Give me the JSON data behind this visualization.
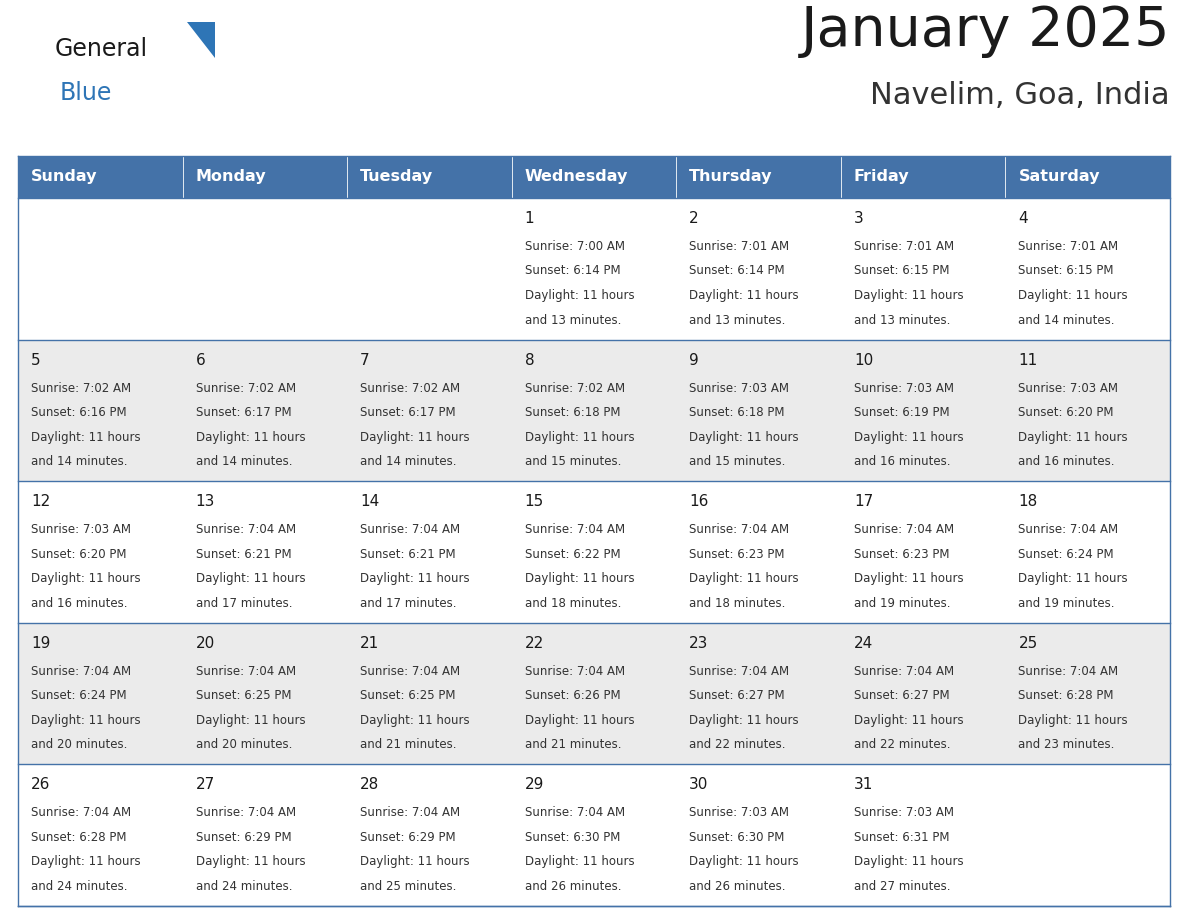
{
  "title": "January 2025",
  "subtitle": "Navelim, Goa, India",
  "header_bg": "#4472A8",
  "header_text_color": "#FFFFFF",
  "row_bg": [
    "#FFFFFF",
    "#EBEBEB",
    "#FFFFFF",
    "#EBEBEB",
    "#FFFFFF"
  ],
  "cell_border_color": "#4472A8",
  "row_separator_color": "#4472A8",
  "day_names": [
    "Sunday",
    "Monday",
    "Tuesday",
    "Wednesday",
    "Thursday",
    "Friday",
    "Saturday"
  ],
  "title_color": "#1a1a1a",
  "subtitle_color": "#333333",
  "day_number_color": "#1a1a1a",
  "info_color": "#333333",
  "logo_general_color": "#1a1a1a",
  "logo_blue_color": "#2E75B6",
  "logo_triangle_color": "#2E75B6",
  "calendar": [
    [
      {
        "day": null,
        "sunrise": null,
        "sunset": null,
        "daylight": null
      },
      {
        "day": null,
        "sunrise": null,
        "sunset": null,
        "daylight": null
      },
      {
        "day": null,
        "sunrise": null,
        "sunset": null,
        "daylight": null
      },
      {
        "day": 1,
        "sunrise": "7:00 AM",
        "sunset": "6:14 PM",
        "daylight": "11 hours and 13 minutes."
      },
      {
        "day": 2,
        "sunrise": "7:01 AM",
        "sunset": "6:14 PM",
        "daylight": "11 hours and 13 minutes."
      },
      {
        "day": 3,
        "sunrise": "7:01 AM",
        "sunset": "6:15 PM",
        "daylight": "11 hours and 13 minutes."
      },
      {
        "day": 4,
        "sunrise": "7:01 AM",
        "sunset": "6:15 PM",
        "daylight": "11 hours and 14 minutes."
      }
    ],
    [
      {
        "day": 5,
        "sunrise": "7:02 AM",
        "sunset": "6:16 PM",
        "daylight": "11 hours and 14 minutes."
      },
      {
        "day": 6,
        "sunrise": "7:02 AM",
        "sunset": "6:17 PM",
        "daylight": "11 hours and 14 minutes."
      },
      {
        "day": 7,
        "sunrise": "7:02 AM",
        "sunset": "6:17 PM",
        "daylight": "11 hours and 14 minutes."
      },
      {
        "day": 8,
        "sunrise": "7:02 AM",
        "sunset": "6:18 PM",
        "daylight": "11 hours and 15 minutes."
      },
      {
        "day": 9,
        "sunrise": "7:03 AM",
        "sunset": "6:18 PM",
        "daylight": "11 hours and 15 minutes."
      },
      {
        "day": 10,
        "sunrise": "7:03 AM",
        "sunset": "6:19 PM",
        "daylight": "11 hours and 16 minutes."
      },
      {
        "day": 11,
        "sunrise": "7:03 AM",
        "sunset": "6:20 PM",
        "daylight": "11 hours and 16 minutes."
      }
    ],
    [
      {
        "day": 12,
        "sunrise": "7:03 AM",
        "sunset": "6:20 PM",
        "daylight": "11 hours and 16 minutes."
      },
      {
        "day": 13,
        "sunrise": "7:04 AM",
        "sunset": "6:21 PM",
        "daylight": "11 hours and 17 minutes."
      },
      {
        "day": 14,
        "sunrise": "7:04 AM",
        "sunset": "6:21 PM",
        "daylight": "11 hours and 17 minutes."
      },
      {
        "day": 15,
        "sunrise": "7:04 AM",
        "sunset": "6:22 PM",
        "daylight": "11 hours and 18 minutes."
      },
      {
        "day": 16,
        "sunrise": "7:04 AM",
        "sunset": "6:23 PM",
        "daylight": "11 hours and 18 minutes."
      },
      {
        "day": 17,
        "sunrise": "7:04 AM",
        "sunset": "6:23 PM",
        "daylight": "11 hours and 19 minutes."
      },
      {
        "day": 18,
        "sunrise": "7:04 AM",
        "sunset": "6:24 PM",
        "daylight": "11 hours and 19 minutes."
      }
    ],
    [
      {
        "day": 19,
        "sunrise": "7:04 AM",
        "sunset": "6:24 PM",
        "daylight": "11 hours and 20 minutes."
      },
      {
        "day": 20,
        "sunrise": "7:04 AM",
        "sunset": "6:25 PM",
        "daylight": "11 hours and 20 minutes."
      },
      {
        "day": 21,
        "sunrise": "7:04 AM",
        "sunset": "6:25 PM",
        "daylight": "11 hours and 21 minutes."
      },
      {
        "day": 22,
        "sunrise": "7:04 AM",
        "sunset": "6:26 PM",
        "daylight": "11 hours and 21 minutes."
      },
      {
        "day": 23,
        "sunrise": "7:04 AM",
        "sunset": "6:27 PM",
        "daylight": "11 hours and 22 minutes."
      },
      {
        "day": 24,
        "sunrise": "7:04 AM",
        "sunset": "6:27 PM",
        "daylight": "11 hours and 22 minutes."
      },
      {
        "day": 25,
        "sunrise": "7:04 AM",
        "sunset": "6:28 PM",
        "daylight": "11 hours and 23 minutes."
      }
    ],
    [
      {
        "day": 26,
        "sunrise": "7:04 AM",
        "sunset": "6:28 PM",
        "daylight": "11 hours and 24 minutes."
      },
      {
        "day": 27,
        "sunrise": "7:04 AM",
        "sunset": "6:29 PM",
        "daylight": "11 hours and 24 minutes."
      },
      {
        "day": 28,
        "sunrise": "7:04 AM",
        "sunset": "6:29 PM",
        "daylight": "11 hours and 25 minutes."
      },
      {
        "day": 29,
        "sunrise": "7:04 AM",
        "sunset": "6:30 PM",
        "daylight": "11 hours and 26 minutes."
      },
      {
        "day": 30,
        "sunrise": "7:03 AM",
        "sunset": "6:30 PM",
        "daylight": "11 hours and 26 minutes."
      },
      {
        "day": 31,
        "sunrise": "7:03 AM",
        "sunset": "6:31 PM",
        "daylight": "11 hours and 27 minutes."
      },
      {
        "day": null,
        "sunrise": null,
        "sunset": null,
        "daylight": null
      }
    ]
  ]
}
